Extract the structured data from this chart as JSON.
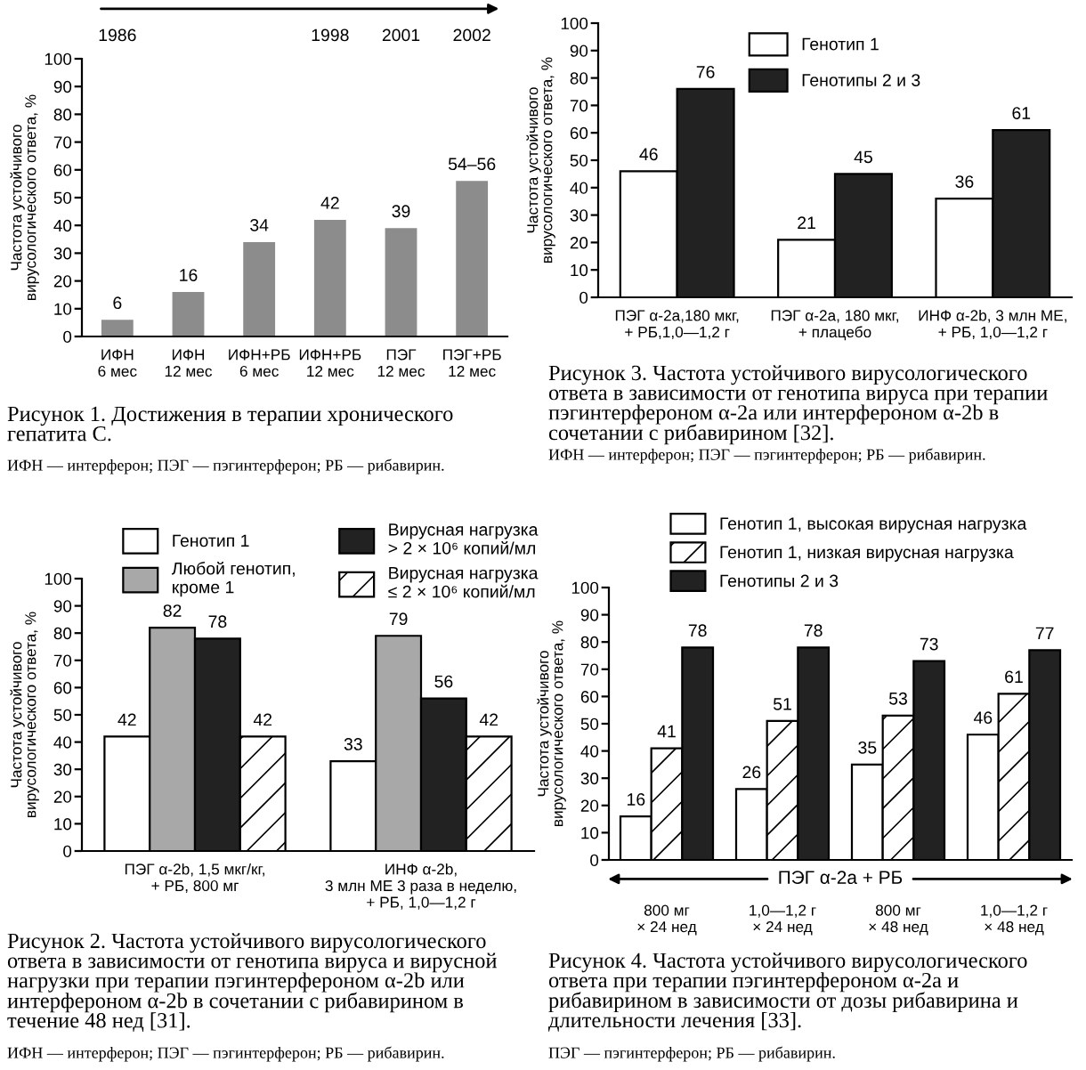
{
  "chart_data": [
    {
      "type": "bar",
      "title": "Рисунок 1. Достижения в терапии хронического гепатита С.",
      "ylabel": "Частота устойчивого вирусологического ответа, %",
      "categories": [
        "ИФН\n6 мес",
        "ИФН\n12 мес",
        "ИФН+РБ\n6 мес",
        "ИФН+РБ\n12 мес",
        "ПЭГ\n12 мес",
        "ПЭГ+РБ\n12 мес"
      ],
      "values": [
        6,
        16,
        34,
        42,
        39,
        56
      ],
      "value_labels": [
        "6",
        "16",
        "34",
        "42",
        "39",
        "54–56"
      ],
      "color": "#8c8c8c",
      "ylim": [
        0,
        100
      ],
      "yticks": [
        0,
        10,
        20,
        30,
        40,
        50,
        60,
        70,
        80,
        90,
        100
      ],
      "annotations": [
        "1986",
        "1998",
        "2001",
        "2002",
        "ИФН — интерферон; ПЭГ — пэгинтерферон; РБ — рибавирин."
      ]
    },
    {
      "type": "bar",
      "title": "Рисунок 3. Частота устойчивого вирусологического ответа в зависимости от генотипа вируса при терапии пэгинтерфероном α-2a или интерфероном α-2b в сочетании с рибавирином [32].",
      "ylabel": "Частота устойчивого вирусологического ответа, %",
      "categories": [
        "ПЭГ α-2a,180 мкг,\n+ РБ,1,0—1,2 г",
        "ПЭГ α-2a, 180 мкг,\n+ плацебо",
        "ИНФ α-2b, 3 млн МЕ,\n+ РБ, 1,0—1,2 г"
      ],
      "series": [
        {
          "name": "Генотип 1",
          "color": "#ffffff",
          "values": [
            46,
            21,
            36
          ]
        },
        {
          "name": "Генотипы 2 и 3",
          "color": "#222222",
          "values": [
            76,
            45,
            61
          ]
        }
      ],
      "data_labels": true,
      "legend": "top",
      "ylim": [
        0,
        100
      ],
      "yticks": [
        0,
        10,
        20,
        30,
        40,
        50,
        60,
        70,
        80,
        90,
        100
      ],
      "annotations": [
        "ИФН — интерферон; ПЭГ — пэгинтерферон; РБ — рибавирин."
      ]
    },
    {
      "type": "bar",
      "title": "Рисунок 2. Частота устойчивого вирусологического ответа в зависимости от генотипа вируса и вирусной нагрузки при терапии пэгинтерфероном α-2b или интерфероном α-2b в сочетании с рибавирином в течение 48 нед [31].",
      "ylabel": "Частота устойчивого вирусологического ответа, %",
      "categories": [
        "ПЭГ α-2b, 1,5 мкг/кг,\n+ РБ, 800 мг",
        "ИНФ α-2b,\n3 млн МЕ 3 раза в неделю,\n+ РБ, 1,0—1,2 г"
      ],
      "series": [
        {
          "name": "Генотип 1",
          "color": "#ffffff",
          "values": [
            42,
            33
          ]
        },
        {
          "name": "Любой генотип,\nкроме 1",
          "color": "#a8a8a8",
          "values": [
            82,
            79
          ]
        },
        {
          "name": "Вирусная нагрузка\n> 2 × 10⁶ копий/мл",
          "color": "#222222",
          "values": [
            78,
            56
          ]
        },
        {
          "name": "Вирусная нагрузка\n≤ 2 × 10⁶ копий/мл",
          "color": "#ffffff",
          "values": [
            42,
            42
          ]
        }
      ],
      "data_labels": true,
      "legend": "top",
      "ylim": [
        0,
        100
      ],
      "yticks": [
        0,
        10,
        20,
        30,
        40,
        50,
        60,
        70,
        80,
        90,
        100
      ],
      "annotations": [
        "ИФН — интерферон; ПЭГ — пэгинтерферон; РБ — рибавирин."
      ]
    },
    {
      "type": "bar",
      "title": "Рисунок 4. Частота устойчивого вирусологического ответа при терапии пэгинтерфероном α-2a и рибавирином в зависимости от дозы рибавирина и длительности лечения [33].",
      "ylabel": "Частота устойчивого вирусологического ответа, %",
      "categories": [
        "800 мг\n× 24 нед",
        "1,0—1,2 г\n× 24 нед",
        "800 мг\n× 48 нед",
        "1,0—1,2 г\n× 48 нед"
      ],
      "series": [
        {
          "name": "Генотип 1, высокая вирусная нагрузка",
          "color": "#ffffff",
          "values": [
            16,
            26,
            35,
            46
          ]
        },
        {
          "name": "Генотип 1, низкая вирусная нагрузка",
          "color": "#ffffff",
          "values": [
            41,
            51,
            53,
            61
          ]
        },
        {
          "name": "Генотипы 2 и 3",
          "color": "#222222",
          "values": [
            78,
            78,
            73,
            77
          ]
        }
      ],
      "data_labels": true,
      "legend": "top",
      "ylim": [
        0,
        100
      ],
      "yticks": [
        0,
        10,
        20,
        30,
        40,
        50,
        60,
        70,
        80,
        90,
        100
      ],
      "annotations": [
        "ПЭГ α-2a + РБ",
        "ПЭГ — пэгинтерферон; РБ — рибавирин."
      ]
    }
  ]
}
